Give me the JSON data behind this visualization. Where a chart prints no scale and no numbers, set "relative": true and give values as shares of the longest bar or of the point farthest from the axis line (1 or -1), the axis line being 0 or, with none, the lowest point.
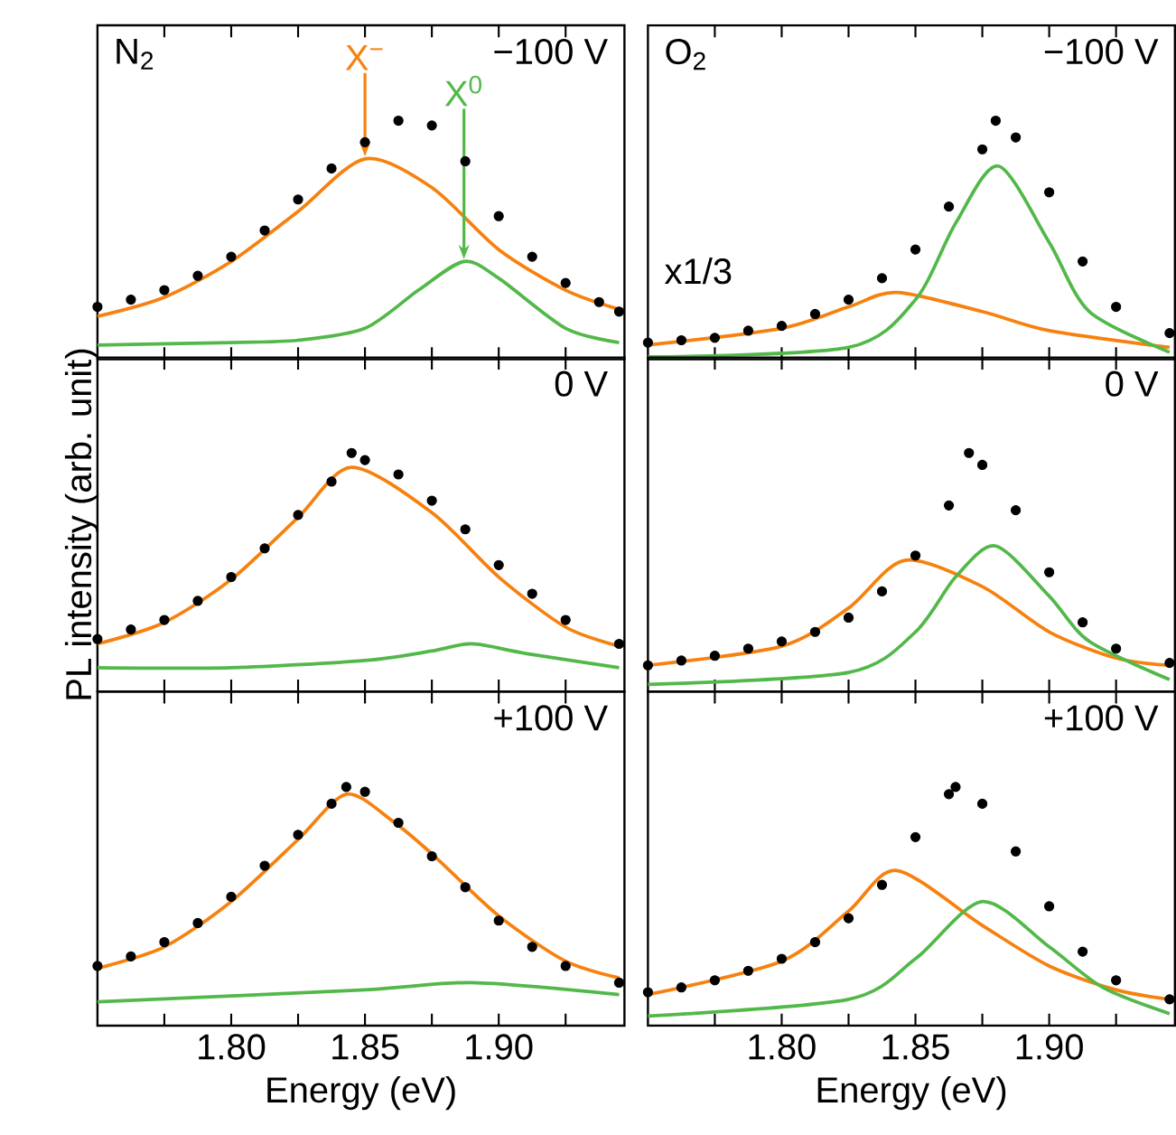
{
  "chart_data": [
    {
      "type": "line",
      "relative": true,
      "title": "−100 V",
      "annotations": [
        "N$_{2}$"
      ],
      "xlim": [
        1.75,
        1.947
      ],
      "xticks": [
        {
          "value": 1.775,
          "label": null
        },
        {
          "value": 1.8,
          "label": null
        },
        {
          "value": 1.825,
          "label": null
        },
        {
          "value": 1.85,
          "label": null
        },
        {
          "value": 1.875,
          "label": null
        },
        {
          "value": 1.9,
          "label": null
        },
        {
          "value": 1.925,
          "label": null
        }
      ],
      "tick_labels": false,
      "series": [
        {
          "type": "scatter",
          "marker": "circle",
          "color": "#000000",
          "x": [
            1.75,
            1.7625,
            1.775,
            1.7875,
            1.8,
            1.8125,
            1.825,
            1.8375,
            1.85,
            1.8625,
            1.875,
            1.8875,
            1.9,
            1.9125,
            1.925,
            1.9375,
            1.945
          ],
          "values": [
            0.22,
            0.25,
            0.29,
            0.35,
            0.43,
            0.54,
            0.67,
            0.8,
            0.91,
            1,
            0.98,
            0.83,
            0.6,
            0.43,
            0.32,
            0.24,
            0.2
          ]
        },
        {
          "name": "X$^{−}$",
          "color": "#f7810f",
          "x": [
            1.75,
            1.775,
            1.8,
            1.825,
            1.85,
            1.875,
            1.9,
            1.925,
            1.945
          ],
          "values": [
            0.18,
            0.26,
            0.41,
            0.62,
            0.84,
            0.72,
            0.46,
            0.29,
            0.21
          ]
        },
        {
          "name": "X$^{0}$",
          "color": "#52b849",
          "x": [
            1.75,
            1.8,
            1.825,
            1.85,
            1.87,
            1.887,
            1.9,
            1.925,
            1.945
          ],
          "values": [
            0.06,
            0.07,
            0.08,
            0.13,
            0.29,
            0.41,
            0.34,
            0.13,
            0.07
          ]
        }
      ]
    },
    {
      "type": "line",
      "relative": true,
      "title": "−100 V",
      "annotations": [
        "O$_{2}$",
        "x1/3"
      ],
      "xlim": [
        1.75,
        1.947
      ],
      "xticks": [
        {
          "value": 1.775,
          "label": null
        },
        {
          "value": 1.8,
          "label": null
        },
        {
          "value": 1.825,
          "label": null
        },
        {
          "value": 1.85,
          "label": null
        },
        {
          "value": 1.875,
          "label": null
        },
        {
          "value": 1.9,
          "label": null
        },
        {
          "value": 1.925,
          "label": null
        }
      ],
      "tick_labels": false,
      "series": [
        {
          "type": "scatter",
          "marker": "circle",
          "color": "#000000",
          "x": [
            1.75,
            1.7625,
            1.775,
            1.7875,
            1.8,
            1.8125,
            1.825,
            1.8375,
            1.85,
            1.8625,
            1.875,
            1.88,
            1.8875,
            1.9,
            1.9125,
            1.925,
            1.945
          ],
          "values": [
            0.07,
            0.08,
            0.09,
            0.12,
            0.14,
            0.19,
            0.25,
            0.34,
            0.46,
            0.64,
            0.88,
            1,
            0.93,
            0.7,
            0.41,
            0.22,
            0.11
          ]
        },
        {
          "color": "#f7810f",
          "x": [
            1.75,
            1.8,
            1.825,
            1.843,
            1.875,
            1.9,
            1.945
          ],
          "values": [
            0.06,
            0.13,
            0.22,
            0.28,
            0.2,
            0.12,
            0.05
          ]
        },
        {
          "color": "#52b849",
          "x": [
            1.75,
            1.825,
            1.85,
            1.865,
            1.881,
            1.9,
            1.915,
            1.945
          ],
          "values": [
            0.01,
            0.05,
            0.25,
            0.57,
            0.81,
            0.49,
            0.2,
            0.03
          ]
        }
      ]
    },
    {
      "type": "line",
      "relative": true,
      "title": "0 V",
      "ylabel": "PL intensity (arb. unit)",
      "xlim": [
        1.75,
        1.947
      ],
      "xticks": [
        {
          "value": 1.775,
          "label": null
        },
        {
          "value": 1.8,
          "label": null
        },
        {
          "value": 1.825,
          "label": null
        },
        {
          "value": 1.85,
          "label": null
        },
        {
          "value": 1.875,
          "label": null
        },
        {
          "value": 1.9,
          "label": null
        },
        {
          "value": 1.925,
          "label": null
        }
      ],
      "tick_labels": false,
      "series": [
        {
          "type": "scatter",
          "marker": "circle",
          "color": "#000000",
          "x": [
            1.75,
            1.7625,
            1.775,
            1.7875,
            1.8,
            1.8125,
            1.825,
            1.8375,
            1.845,
            1.85,
            1.8625,
            1.875,
            1.8875,
            1.9,
            1.9125,
            1.925,
            1.945
          ],
          "values": [
            0.22,
            0.26,
            0.3,
            0.38,
            0.48,
            0.6,
            0.74,
            0.88,
            1,
            0.97,
            0.91,
            0.8,
            0.68,
            0.53,
            0.41,
            0.3,
            0.2
          ]
        },
        {
          "color": "#f7810f",
          "x": [
            1.75,
            1.775,
            1.8,
            1.825,
            1.845,
            1.875,
            1.9,
            1.925,
            1.945
          ],
          "values": [
            0.2,
            0.29,
            0.47,
            0.73,
            0.94,
            0.75,
            0.48,
            0.27,
            0.19
          ]
        },
        {
          "color": "#52b849",
          "x": [
            1.75,
            1.8,
            1.85,
            1.875,
            1.89,
            1.91,
            1.945
          ],
          "values": [
            0.1,
            0.1,
            0.13,
            0.17,
            0.2,
            0.16,
            0.1
          ]
        }
      ]
    },
    {
      "type": "line",
      "relative": true,
      "title": "0 V",
      "xlim": [
        1.75,
        1.947
      ],
      "xticks": [
        {
          "value": 1.775,
          "label": null
        },
        {
          "value": 1.8,
          "label": null
        },
        {
          "value": 1.825,
          "label": null
        },
        {
          "value": 1.85,
          "label": null
        },
        {
          "value": 1.875,
          "label": null
        },
        {
          "value": 1.9,
          "label": null
        },
        {
          "value": 1.925,
          "label": null
        }
      ],
      "tick_labels": false,
      "series": [
        {
          "type": "scatter",
          "marker": "circle",
          "color": "#000000",
          "x": [
            1.75,
            1.7625,
            1.775,
            1.7875,
            1.8,
            1.8125,
            1.825,
            1.8375,
            1.85,
            1.8625,
            1.87,
            1.875,
            1.8875,
            1.9,
            1.9125,
            1.925,
            1.945
          ],
          "values": [
            0.11,
            0.13,
            0.15,
            0.18,
            0.21,
            0.25,
            0.31,
            0.42,
            0.57,
            0.78,
            1,
            0.95,
            0.76,
            0.5,
            0.29,
            0.18,
            0.12
          ]
        },
        {
          "color": "#f7810f",
          "x": [
            1.75,
            1.8,
            1.825,
            1.846,
            1.875,
            1.9,
            1.925,
            1.945
          ],
          "values": [
            0.11,
            0.19,
            0.35,
            0.55,
            0.44,
            0.25,
            0.14,
            0.11
          ]
        },
        {
          "color": "#52b849",
          "x": [
            1.75,
            1.825,
            1.85,
            1.865,
            1.88,
            1.9,
            1.915,
            1.945
          ],
          "values": [
            0.03,
            0.08,
            0.25,
            0.48,
            0.61,
            0.4,
            0.21,
            0.05
          ]
        }
      ]
    },
    {
      "type": "line",
      "relative": true,
      "title": "+100 V",
      "xlabel": "Energy (eV)",
      "xlim": [
        1.75,
        1.947
      ],
      "xticks": [
        {
          "value": 1.775,
          "label": null
        },
        {
          "value": 1.8,
          "label": "1.80"
        },
        {
          "value": 1.825,
          "label": null
        },
        {
          "value": 1.85,
          "label": "1.85"
        },
        {
          "value": 1.875,
          "label": null
        },
        {
          "value": 1.9,
          "label": "1.90"
        },
        {
          "value": 1.925,
          "label": null
        }
      ],
      "tick_labels": "x",
      "series": [
        {
          "type": "scatter",
          "marker": "circle",
          "color": "#000000",
          "x": [
            1.75,
            1.7625,
            1.775,
            1.7875,
            1.8,
            1.8125,
            1.825,
            1.8375,
            1.843,
            1.85,
            1.8625,
            1.875,
            1.8875,
            1.9,
            1.9125,
            1.925,
            1.945
          ],
          "values": [
            0.25,
            0.29,
            0.35,
            0.43,
            0.54,
            0.67,
            0.8,
            0.93,
            1,
            0.98,
            0.85,
            0.71,
            0.58,
            0.44,
            0.33,
            0.25,
            0.18
          ]
        },
        {
          "color": "#f7810f",
          "x": [
            1.75,
            1.775,
            1.8,
            1.825,
            1.843,
            1.86,
            1.875,
            1.9,
            1.925,
            1.945
          ],
          "values": [
            0.24,
            0.33,
            0.52,
            0.78,
            0.97,
            0.86,
            0.72,
            0.46,
            0.27,
            0.2
          ]
        },
        {
          "color": "#52b849",
          "x": [
            1.75,
            1.85,
            1.89,
            1.945
          ],
          "values": [
            0.1,
            0.15,
            0.18,
            0.13
          ]
        }
      ]
    },
    {
      "type": "line",
      "relative": true,
      "title": "+100 V",
      "xlabel": "Energy (eV)",
      "xlim": [
        1.75,
        1.947
      ],
      "xticks": [
        {
          "value": 1.775,
          "label": null
        },
        {
          "value": 1.8,
          "label": "1.80"
        },
        {
          "value": 1.825,
          "label": null
        },
        {
          "value": 1.85,
          "label": "1.85"
        },
        {
          "value": 1.875,
          "label": null
        },
        {
          "value": 1.9,
          "label": "1.90"
        },
        {
          "value": 1.925,
          "label": null
        }
      ],
      "tick_labels": "x",
      "series": [
        {
          "type": "scatter",
          "marker": "circle",
          "color": "#000000",
          "x": [
            1.75,
            1.7625,
            1.775,
            1.7875,
            1.8,
            1.8125,
            1.825,
            1.8375,
            1.85,
            1.8625,
            1.865,
            1.875,
            1.8875,
            1.9,
            1.9125,
            1.925,
            1.945
          ],
          "values": [
            0.14,
            0.16,
            0.19,
            0.23,
            0.28,
            0.35,
            0.45,
            0.59,
            0.79,
            0.97,
            1,
            0.93,
            0.73,
            0.5,
            0.31,
            0.19,
            0.11
          ]
        },
        {
          "color": "#f7810f",
          "x": [
            1.75,
            1.8,
            1.825,
            1.843,
            1.875,
            1.9,
            1.925,
            1.945
          ],
          "values": [
            0.13,
            0.27,
            0.48,
            0.65,
            0.42,
            0.25,
            0.15,
            0.11
          ]
        },
        {
          "color": "#52b849",
          "x": [
            1.75,
            1.825,
            1.85,
            1.875,
            1.9,
            1.92,
            1.945
          ],
          "values": [
            0.04,
            0.11,
            0.28,
            0.52,
            0.33,
            0.16,
            0.05
          ]
        }
      ]
    }
  ]
}
